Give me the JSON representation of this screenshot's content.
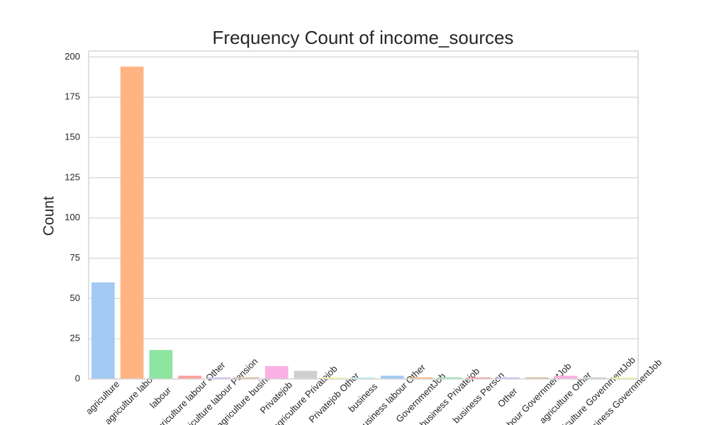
{
  "chart_data": {
    "type": "bar",
    "title": "Frequency Count of income_sources",
    "y_label": "Count",
    "categories": [
      "agriculture",
      "agriculture labour",
      "labour",
      "agriculture labour Other",
      "agriculture labour Pension",
      "agriculture business",
      "Privatejob",
      "agriculture Privatejob",
      "Privatejob Other",
      "business",
      "business labour Other",
      "GovernmentJob",
      "business Privatejob",
      "business Person",
      "Other",
      "labour GovernmentJob",
      "agriculture Other",
      "agriculture GovernmentJob",
      "business GovernmentJob"
    ],
    "values": [
      60,
      194,
      18,
      2,
      1,
      1,
      8,
      5,
      1,
      1,
      2,
      1,
      1,
      1,
      1,
      1,
      2,
      1,
      1
    ],
    "colors": [
      "#a1c9f4",
      "#ffb482",
      "#8de5a1",
      "#ff9f9b",
      "#d0bbff",
      "#debb9b",
      "#fab0e4",
      "#cfcfcf",
      "#fffea3",
      "#b9f2f0",
      "#a1c9f4",
      "#ffb482",
      "#8de5a1",
      "#ff9f9b",
      "#d0bbff",
      "#debb9b",
      "#fab0e4",
      "#cfcfcf",
      "#fffea3"
    ],
    "ylim": [
      0,
      203.7
    ],
    "yticks": [
      0,
      25,
      50,
      75,
      100,
      125,
      150,
      175,
      200
    ],
    "grid": true
  }
}
